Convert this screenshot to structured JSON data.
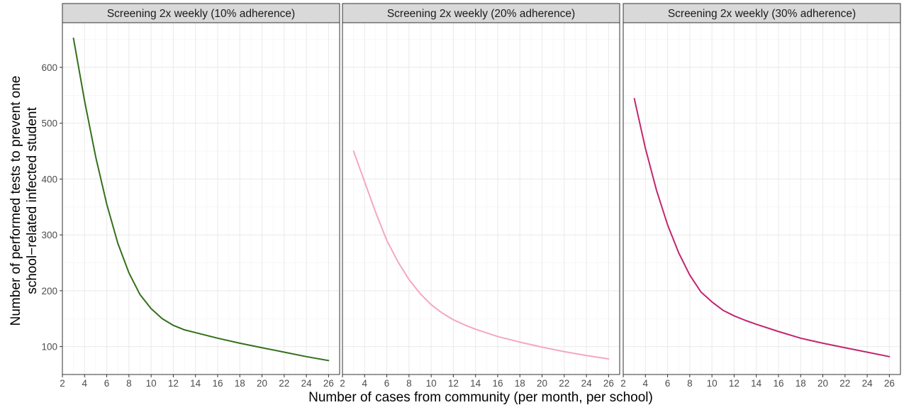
{
  "chart_data": {
    "type": "line",
    "xlabel": "Number of cases from community (per month, per school)",
    "ylabel_lines": [
      "Number of performed tests to prevent one",
      "school−related infected student"
    ],
    "xlim": [
      2,
      27
    ],
    "ylim": [
      50,
      680
    ],
    "x_ticks": [
      2,
      4,
      6,
      8,
      10,
      12,
      14,
      16,
      18,
      20,
      22,
      24,
      26
    ],
    "y_ticks": [
      100,
      200,
      300,
      400,
      500,
      600
    ],
    "grid": true,
    "panels": [
      {
        "strip_label": "Screening 2x weekly (10% adherence)",
        "color": "#33701a",
        "x": [
          3,
          4,
          5,
          6,
          7,
          8,
          9,
          10,
          11,
          12,
          13,
          14,
          16,
          18,
          20,
          22,
          24,
          26
        ],
        "y": [
          652,
          540,
          440,
          355,
          285,
          232,
          193,
          168,
          150,
          138,
          130,
          125,
          115,
          106,
          98,
          90,
          82,
          75
        ]
      },
      {
        "strip_label": "Screening 2x weekly (20% adherence)",
        "color": "#f4a6c6",
        "x": [
          3,
          4,
          5,
          6,
          7,
          8,
          9,
          10,
          11,
          12,
          13,
          14,
          16,
          18,
          20,
          22,
          24,
          26
        ],
        "y": [
          450,
          395,
          340,
          290,
          252,
          220,
          195,
          175,
          160,
          148,
          139,
          131,
          118,
          108,
          99,
          91,
          84,
          78
        ]
      },
      {
        "strip_label": "Screening 2x weekly (30% adherence)",
        "color": "#c2266e",
        "x": [
          3,
          4,
          5,
          6,
          7,
          8,
          9,
          10,
          11,
          12,
          13,
          14,
          16,
          18,
          20,
          22,
          24,
          26
        ],
        "y": [
          544,
          455,
          380,
          318,
          268,
          228,
          198,
          180,
          165,
          155,
          147,
          140,
          127,
          115,
          106,
          98,
          90,
          82
        ]
      }
    ]
  }
}
